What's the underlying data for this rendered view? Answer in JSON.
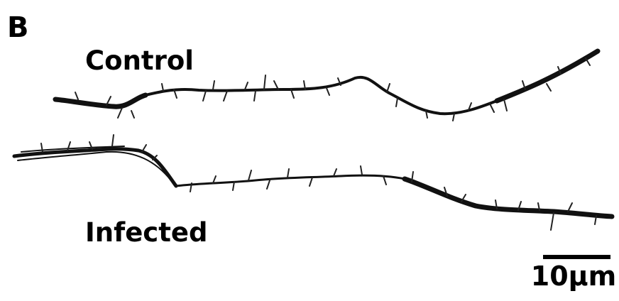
{
  "panel_label": "B",
  "labels": {
    "top": "Control",
    "bottom": "Infected"
  },
  "scale_bar": {
    "label": "10µm"
  }
}
